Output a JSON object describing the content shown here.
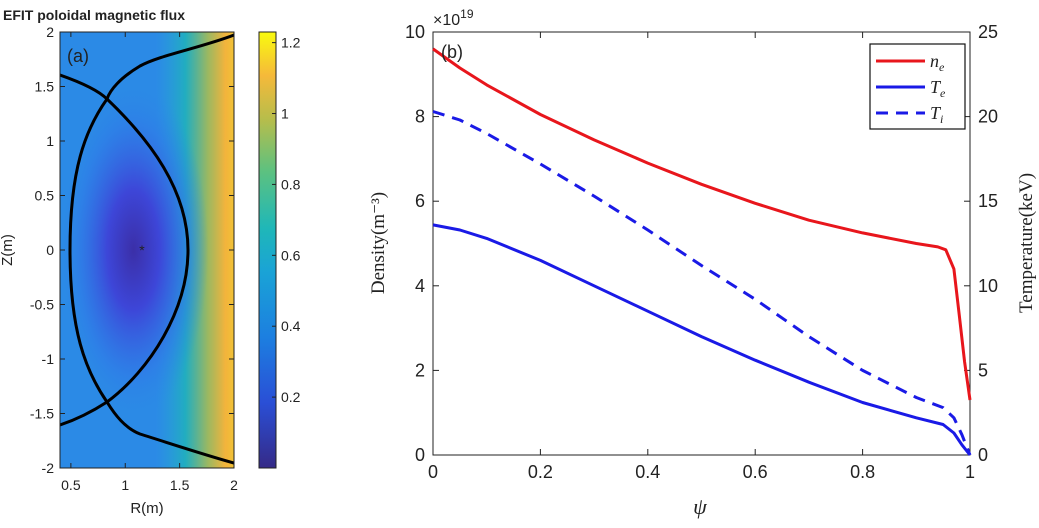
{
  "chart_data": [
    {
      "type": "heatmap",
      "title": "EFIT poloidal magnetic flux",
      "panel_label": "(a)",
      "xlabel": "R(m)",
      "ylabel": "Z(m)",
      "xlim": [
        0.4,
        2
      ],
      "ylim": [
        -2,
        2
      ],
      "xticks": [
        "0.5",
        "1",
        "1.5",
        "2"
      ],
      "xtick_values": [
        0.5,
        1,
        1.5,
        2
      ],
      "yticks": [
        "2",
        "1.5",
        "1",
        "0.5",
        "0",
        "-0.5",
        "-1",
        "-1.5",
        "-2"
      ],
      "ytick_values": [
        2,
        1.5,
        1,
        0.5,
        0,
        -0.5,
        -1,
        -1.5,
        -2
      ],
      "colorbar": {
        "range": [
          0.0,
          1.23
        ],
        "ticks": [
          "0.2",
          "0.4",
          "0.6",
          "0.8",
          "1",
          "1.2"
        ],
        "tick_values": [
          0.2,
          0.4,
          0.6,
          0.8,
          1.0,
          1.2
        ],
        "colormap": "parula"
      },
      "magnetic_axis": {
        "R": 1.16,
        "Z": 0.0,
        "marker": "*",
        "color": "#e8173a"
      },
      "x_points": [
        {
          "R": 0.83,
          "Z": 1.38
        },
        {
          "R": 0.83,
          "Z": -1.39
        }
      ]
    },
    {
      "type": "line",
      "panel_label": "(b)",
      "xlabel": "ψ",
      "ylabel": "Density(m⁻³)",
      "ylabel_right": "Temperature(keV)",
      "y_exponent": "×10",
      "y_exponent_power": "19",
      "xlim": [
        0,
        1
      ],
      "ylim": [
        0,
        10
      ],
      "ylim_right": [
        0,
        25
      ],
      "xticks": [
        "0",
        "0.2",
        "0.4",
        "0.6",
        "0.8",
        "1"
      ],
      "xtick_values": [
        0,
        0.2,
        0.4,
        0.6,
        0.8,
        1
      ],
      "yticks": [
        "0",
        "2",
        "4",
        "6",
        "8",
        "10"
      ],
      "ytick_values": [
        0,
        2,
        4,
        6,
        8,
        10
      ],
      "yticks_right": [
        "0",
        "5",
        "10",
        "15",
        "20",
        "25"
      ],
      "ytick_values_right": [
        0,
        5,
        10,
        15,
        20,
        25
      ],
      "legend_position": "top-right",
      "series": [
        {
          "name": "n",
          "sub": "e",
          "axis": "left",
          "color": "#e8161c",
          "dash": false,
          "x": [
            0,
            0.05,
            0.1,
            0.2,
            0.3,
            0.4,
            0.5,
            0.6,
            0.7,
            0.8,
            0.9,
            0.94,
            0.955,
            0.97,
            0.98,
            0.99,
            1.0
          ],
          "y": [
            9.6,
            9.15,
            8.75,
            8.05,
            7.45,
            6.9,
            6.4,
            5.95,
            5.55,
            5.25,
            5.0,
            4.92,
            4.85,
            4.4,
            3.3,
            2.2,
            1.3
          ]
        },
        {
          "name": "T",
          "sub": "e",
          "axis": "right",
          "color": "#1a1ae6",
          "dash": false,
          "x": [
            0,
            0.05,
            0.1,
            0.2,
            0.3,
            0.4,
            0.5,
            0.6,
            0.7,
            0.8,
            0.9,
            0.95,
            0.97,
            0.985,
            1.0
          ],
          "y": [
            13.6,
            13.3,
            12.8,
            11.5,
            10.0,
            8.5,
            7.0,
            5.6,
            4.3,
            3.1,
            2.2,
            1.8,
            1.3,
            0.6,
            0
          ]
        },
        {
          "name": "T",
          "sub": "i",
          "axis": "right",
          "color": "#1a1ae6",
          "dash": true,
          "x": [
            0,
            0.05,
            0.1,
            0.2,
            0.3,
            0.4,
            0.5,
            0.6,
            0.7,
            0.8,
            0.9,
            0.95,
            0.97,
            0.985,
            1.0
          ],
          "y": [
            20.3,
            19.8,
            19.0,
            17.2,
            15.3,
            13.3,
            11.2,
            9.2,
            7.0,
            5.0,
            3.4,
            2.8,
            2.2,
            1.2,
            0
          ]
        }
      ]
    }
  ]
}
